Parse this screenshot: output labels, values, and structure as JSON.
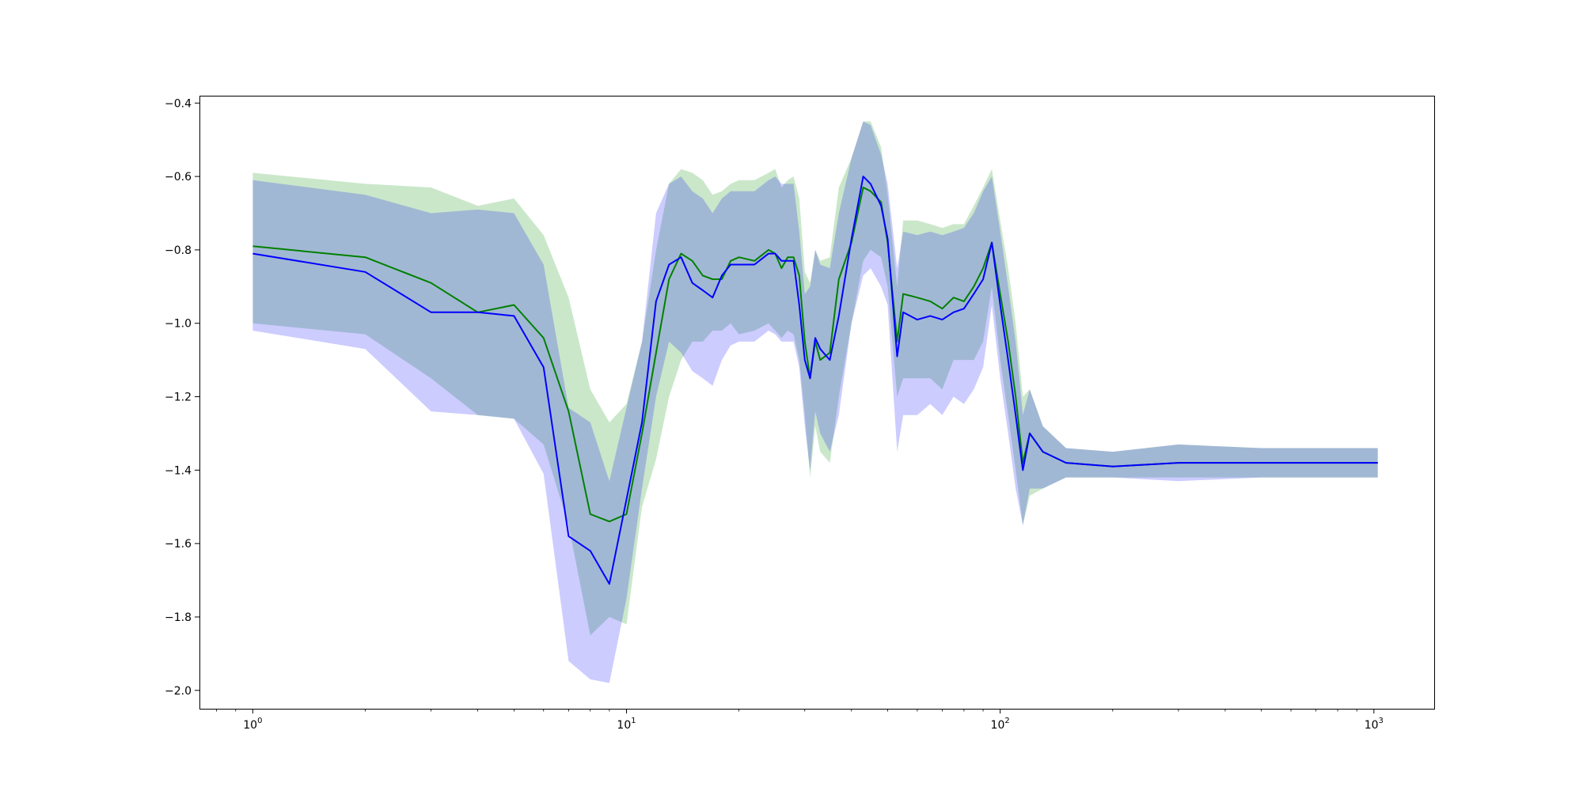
{
  "chart_data": {
    "type": "line",
    "title": "",
    "xlabel": "",
    "ylabel": "",
    "x_scale": "log",
    "xlim": [
      0.72,
      1450
    ],
    "ylim": [
      -2.05,
      -0.38
    ],
    "grid": false,
    "legend": "none",
    "x_ticks": [
      {
        "value": 1,
        "base": "10",
        "exp": "0"
      },
      {
        "value": 10,
        "base": "10",
        "exp": "1"
      },
      {
        "value": 100,
        "base": "10",
        "exp": "2"
      },
      {
        "value": 1000,
        "base": "10",
        "exp": "3"
      }
    ],
    "y_ticks": [
      {
        "value": -0.4,
        "label": "−0.4"
      },
      {
        "value": -0.6,
        "label": "−0.6"
      },
      {
        "value": -0.8,
        "label": "−0.8"
      },
      {
        "value": -1.0,
        "label": "−1.0"
      },
      {
        "value": -1.2,
        "label": "−1.2"
      },
      {
        "value": -1.4,
        "label": "−1.4"
      },
      {
        "value": -1.6,
        "label": "−1.6"
      },
      {
        "value": -1.8,
        "label": "−1.8"
      },
      {
        "value": -2.0,
        "label": "−2.0"
      }
    ],
    "series": [
      {
        "color": "#008000",
        "band_color": "#2ca02c",
        "band_opacity": 0.25,
        "x": [
          1,
          2,
          3,
          4,
          5,
          6,
          7,
          8,
          9,
          10,
          11,
          12,
          13,
          14,
          15,
          16,
          17,
          18,
          19,
          20,
          22,
          24,
          25,
          26,
          27,
          28,
          29,
          30,
          31,
          32,
          33,
          35,
          37,
          40,
          43,
          45,
          48,
          50,
          53,
          55,
          60,
          65,
          70,
          75,
          80,
          85,
          90,
          95,
          100,
          105,
          110,
          115,
          120,
          130,
          150,
          200,
          300,
          500,
          700,
          1024
        ],
        "y": [
          -0.79,
          -0.82,
          -0.89,
          -0.97,
          -0.95,
          -1.04,
          -1.24,
          -1.52,
          -1.54,
          -1.52,
          -1.3,
          -1.08,
          -0.88,
          -0.81,
          -0.83,
          -0.87,
          -0.88,
          -0.88,
          -0.83,
          -0.82,
          -0.83,
          -0.8,
          -0.81,
          -0.85,
          -0.82,
          -0.82,
          -0.87,
          -1.05,
          -1.15,
          -1.05,
          -1.1,
          -1.08,
          -0.88,
          -0.78,
          -0.63,
          -0.64,
          -0.67,
          -0.78,
          -1.05,
          -0.92,
          -0.93,
          -0.94,
          -0.96,
          -0.93,
          -0.94,
          -0.9,
          -0.85,
          -0.78,
          -0.92,
          -1.05,
          -1.2,
          -1.38,
          -1.3,
          -1.35,
          -1.38,
          -1.39,
          -1.38,
          -1.38,
          -1.38,
          -1.38
        ],
        "y_lower": [
          -1.0,
          -1.03,
          -1.15,
          -1.25,
          -1.26,
          -1.33,
          -1.55,
          -1.85,
          -1.8,
          -1.82,
          -1.5,
          -1.37,
          -1.2,
          -1.1,
          -1.05,
          -1.05,
          -1.02,
          -1.02,
          -1.0,
          -1.03,
          -1.02,
          -1.0,
          -1.02,
          -1.04,
          -1.02,
          -1.03,
          -1.1,
          -1.25,
          -1.42,
          -1.28,
          -1.35,
          -1.38,
          -1.2,
          -1.0,
          -0.83,
          -0.8,
          -0.82,
          -0.9,
          -1.2,
          -1.15,
          -1.15,
          -1.15,
          -1.18,
          -1.1,
          -1.1,
          -1.1,
          -1.05,
          -0.9,
          -1.1,
          -1.25,
          -1.4,
          -1.55,
          -1.47,
          -1.45,
          -1.42,
          -1.42,
          -1.42,
          -1.42,
          -1.42,
          -1.42
        ],
        "y_upper": [
          -0.59,
          -0.62,
          -0.63,
          -0.68,
          -0.66,
          -0.76,
          -0.93,
          -1.18,
          -1.27,
          -1.22,
          -1.05,
          -0.8,
          -0.62,
          -0.58,
          -0.59,
          -0.61,
          -0.65,
          -0.64,
          -0.62,
          -0.61,
          -0.61,
          -0.59,
          -0.58,
          -0.63,
          -0.61,
          -0.6,
          -0.66,
          -0.86,
          -0.89,
          -0.8,
          -0.83,
          -0.82,
          -0.63,
          -0.55,
          -0.45,
          -0.45,
          -0.52,
          -0.65,
          -0.9,
          -0.72,
          -0.72,
          -0.73,
          -0.74,
          -0.73,
          -0.73,
          -0.68,
          -0.63,
          -0.58,
          -0.72,
          -0.85,
          -1.0,
          -1.2,
          -1.18,
          -1.28,
          -1.34,
          -1.35,
          -1.33,
          -1.34,
          -1.34,
          -1.34
        ]
      },
      {
        "color": "#0000ff",
        "band_color": "#0000ff",
        "band_opacity": 0.2,
        "x": [
          1,
          2,
          3,
          4,
          5,
          6,
          7,
          8,
          9,
          10,
          11,
          12,
          13,
          14,
          15,
          16,
          17,
          18,
          19,
          20,
          22,
          24,
          25,
          26,
          27,
          28,
          29,
          30,
          31,
          32,
          33,
          35,
          37,
          40,
          43,
          45,
          48,
          50,
          53,
          55,
          60,
          65,
          70,
          75,
          80,
          85,
          90,
          95,
          100,
          105,
          110,
          115,
          120,
          130,
          150,
          200,
          300,
          500,
          700,
          1024
        ],
        "y": [
          -0.81,
          -0.86,
          -0.97,
          -0.97,
          -0.98,
          -1.12,
          -1.58,
          -1.62,
          -1.71,
          -1.48,
          -1.27,
          -0.94,
          -0.84,
          -0.82,
          -0.89,
          -0.91,
          -0.93,
          -0.87,
          -0.84,
          -0.84,
          -0.84,
          -0.81,
          -0.81,
          -0.83,
          -0.83,
          -0.83,
          -0.95,
          -1.1,
          -1.15,
          -1.04,
          -1.07,
          -1.1,
          -0.98,
          -0.77,
          -0.6,
          -0.62,
          -0.68,
          -0.77,
          -1.09,
          -0.97,
          -0.99,
          -0.98,
          -0.99,
          -0.97,
          -0.96,
          -0.92,
          -0.88,
          -0.78,
          -0.95,
          -1.1,
          -1.25,
          -1.4,
          -1.3,
          -1.35,
          -1.38,
          -1.39,
          -1.38,
          -1.38,
          -1.38,
          -1.38
        ],
        "y_lower": [
          -1.02,
          -1.07,
          -1.24,
          -1.25,
          -1.26,
          -1.41,
          -1.92,
          -1.97,
          -1.98,
          -1.75,
          -1.45,
          -1.2,
          -1.05,
          -1.08,
          -1.13,
          -1.15,
          -1.17,
          -1.1,
          -1.06,
          -1.05,
          -1.05,
          -1.02,
          -1.03,
          -1.05,
          -1.05,
          -1.05,
          -1.12,
          -1.28,
          -1.4,
          -1.24,
          -1.3,
          -1.35,
          -1.25,
          -1.0,
          -0.87,
          -0.85,
          -0.9,
          -0.95,
          -1.35,
          -1.25,
          -1.25,
          -1.22,
          -1.25,
          -1.2,
          -1.22,
          -1.18,
          -1.12,
          -0.95,
          -1.15,
          -1.3,
          -1.45,
          -1.55,
          -1.45,
          -1.45,
          -1.42,
          -1.42,
          -1.43,
          -1.42,
          -1.42,
          -1.42
        ],
        "y_upper": [
          -0.61,
          -0.65,
          -0.7,
          -0.69,
          -0.7,
          -0.84,
          -1.23,
          -1.27,
          -1.43,
          -1.23,
          -1.05,
          -0.7,
          -0.62,
          -0.6,
          -0.64,
          -0.66,
          -0.7,
          -0.66,
          -0.64,
          -0.64,
          -0.64,
          -0.61,
          -0.6,
          -0.62,
          -0.62,
          -0.62,
          -0.75,
          -0.92,
          -0.9,
          -0.8,
          -0.84,
          -0.85,
          -0.7,
          -0.55,
          -0.45,
          -0.46,
          -0.54,
          -0.62,
          -0.85,
          -0.75,
          -0.76,
          -0.75,
          -0.76,
          -0.75,
          -0.74,
          -0.7,
          -0.64,
          -0.6,
          -0.75,
          -0.9,
          -1.05,
          -1.25,
          -1.18,
          -1.28,
          -1.34,
          -1.35,
          -1.33,
          -1.34,
          -1.34,
          -1.34
        ]
      }
    ]
  }
}
